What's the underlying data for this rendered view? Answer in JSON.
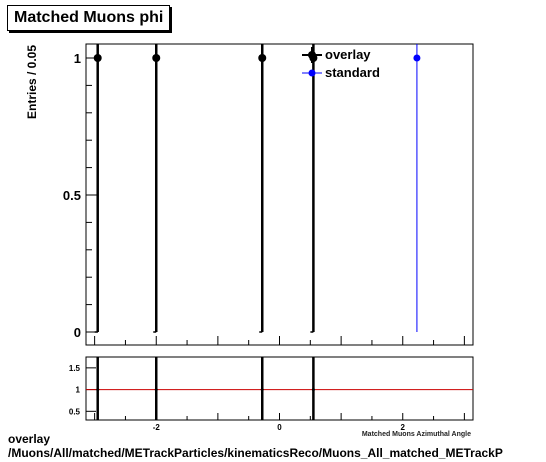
{
  "title": "Matched Muons phi",
  "footer": {
    "line1": "overlay",
    "line2": "/Muons/All/matched/METrackParticles/kinematicsReco/Muons_All_matched_METrackP"
  },
  "colors": {
    "overlay": "#000000",
    "standard": "#0000ff",
    "ratio_line": "#cc0000"
  },
  "chart_data": [
    {
      "type": "scatter",
      "ylabel": "Entries / 0.05",
      "xlim": [
        -3.14,
        3.14
      ],
      "ylim": [
        0,
        1.05
      ],
      "yticks": [
        0,
        0.5,
        1
      ],
      "ytick_labels": [
        "0",
        "0.5",
        "1"
      ],
      "grid": false,
      "legend_position": "top-right",
      "series": [
        {
          "name": "overlay",
          "style": "histogram-points",
          "x": [
            -2.95,
            -2.0,
            -0.28,
            0.55
          ],
          "y": [
            1,
            1,
            1,
            1
          ]
        },
        {
          "name": "standard",
          "style": "histogram-points",
          "x": [
            2.23
          ],
          "y": [
            1
          ]
        }
      ]
    },
    {
      "type": "line",
      "xlabel": "Matched Muons Azimuthal Angle",
      "xlim": [
        -3.14,
        3.14
      ],
      "ylim": [
        0.3,
        1.75
      ],
      "yticks": [
        0.5,
        1,
        1.5
      ],
      "ytick_labels": [
        "0.5",
        "1",
        "1.5"
      ],
      "xticks": [
        -2,
        0,
        2
      ],
      "xtick_labels": [
        "-2",
        "0",
        "2"
      ],
      "reference_line": 1,
      "ratio_spikes_x": [
        -2.95,
        -2.0,
        -0.28,
        0.55
      ]
    }
  ]
}
